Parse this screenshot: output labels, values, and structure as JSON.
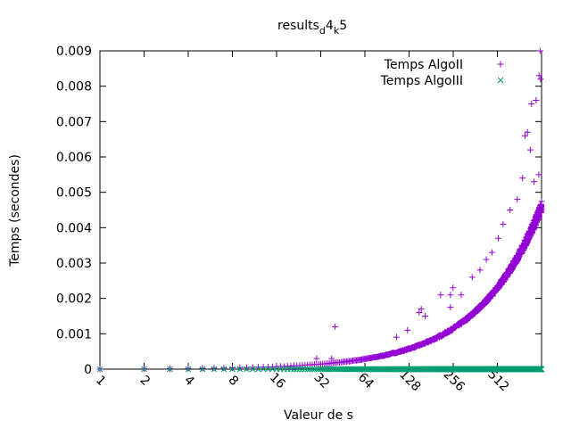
{
  "chart_data": {
    "type": "scatter",
    "title": {
      "main": "results",
      "sub1": "d",
      "mid": "4",
      "sub2": "k",
      "end": "5"
    },
    "xlabel": "Valeur de s",
    "ylabel": "Temps (secondes)",
    "x_scale": "log2",
    "xlim": [
      1,
      1024
    ],
    "ylim": [
      0,
      0.009
    ],
    "x_ticks": [
      "1",
      "2",
      "4",
      "8",
      "16",
      "32",
      "64",
      "128",
      "256",
      "512"
    ],
    "x_tick_values": [
      1,
      2,
      4,
      8,
      16,
      32,
      64,
      128,
      256,
      512
    ],
    "y_ticks": [
      "0",
      "0.001",
      "0.002",
      "0.003",
      "0.004",
      "0.005",
      "0.006",
      "0.007",
      "0.008",
      "0.009"
    ],
    "y_tick_values": [
      0,
      0.001,
      0.002,
      0.003,
      0.004,
      0.005,
      0.006,
      0.007,
      0.008,
      0.009
    ],
    "grid": false,
    "legend_position": "top-right",
    "series": [
      {
        "name": "Temps AlgoII",
        "marker": "+",
        "color": "#9400d3",
        "trend": {
          "y_at_s1": 4.5e-06,
          "exponent": 1.0
        },
        "outliers": [
          {
            "x": 1000,
            "y": 0.009
          },
          {
            "x": 1010,
            "y": 0.0082
          },
          {
            "x": 985,
            "y": 0.0083
          },
          {
            "x": 940,
            "y": 0.0076
          },
          {
            "x": 875,
            "y": 0.0075
          },
          {
            "x": 820,
            "y": 0.0067
          },
          {
            "x": 790,
            "y": 0.0066
          },
          {
            "x": 860,
            "y": 0.0062
          },
          {
            "x": 980,
            "y": 0.0055
          },
          {
            "x": 910,
            "y": 0.0053
          },
          {
            "x": 760,
            "y": 0.0054
          },
          {
            "x": 700,
            "y": 0.0048
          },
          {
            "x": 625,
            "y": 0.0045
          },
          {
            "x": 560,
            "y": 0.0041
          },
          {
            "x": 520,
            "y": 0.0037
          },
          {
            "x": 470,
            "y": 0.0033
          },
          {
            "x": 430,
            "y": 0.0031
          },
          {
            "x": 390,
            "y": 0.0028
          },
          {
            "x": 345,
            "y": 0.0026
          },
          {
            "x": 290,
            "y": 0.0021
          },
          {
            "x": 255,
            "y": 0.0023
          },
          {
            "x": 245,
            "y": 0.0021
          },
          {
            "x": 245,
            "y": 0.00175
          },
          {
            "x": 210,
            "y": 0.0021
          },
          {
            "x": 165,
            "y": 0.0015
          },
          {
            "x": 155,
            "y": 0.0017
          },
          {
            "x": 150,
            "y": 0.0016
          },
          {
            "x": 105,
            "y": 0.0009
          },
          {
            "x": 125,
            "y": 0.0011
          },
          {
            "x": 40,
            "y": 0.0012
          },
          {
            "x": 38,
            "y": 0.0003
          },
          {
            "x": 30,
            "y": 0.0003
          }
        ]
      },
      {
        "name": "Temps AlgoIII",
        "marker": "x",
        "color": "#009e73",
        "trend": {
          "y_at_s1": 0.0,
          "exponent": 1.0
        },
        "outliers": []
      }
    ]
  }
}
